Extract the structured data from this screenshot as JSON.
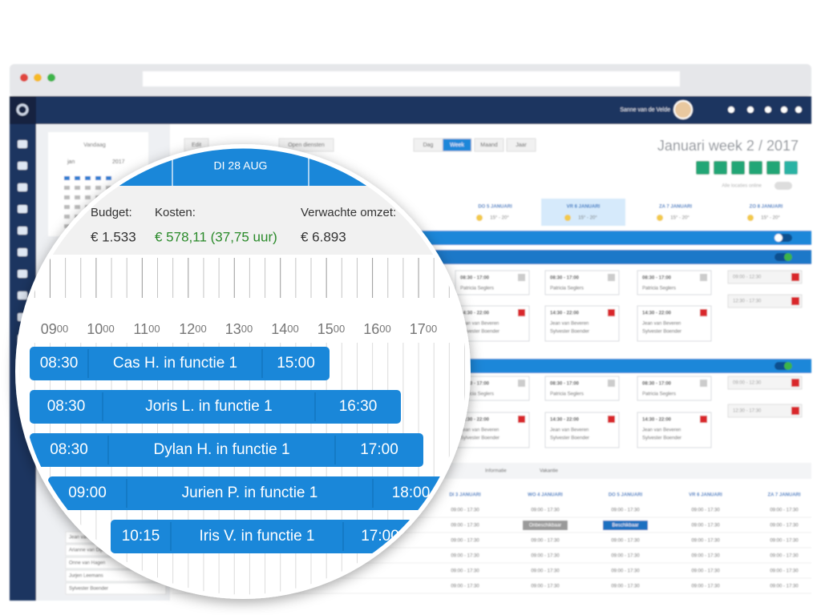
{
  "navbar": {
    "user": "Sanne van de Velde"
  },
  "calendar": {
    "today": "Vandaag",
    "month": "jan",
    "year": "2017"
  },
  "toolbar": {
    "buttons": [
      "Edit",
      "Open diensten"
    ],
    "views": [
      "Dag",
      "Week",
      "Maand",
      "Jaar"
    ],
    "active_view": 1
  },
  "title": "Januari week 2 / 2017",
  "location_toggle": "Alle locaties online",
  "days": [
    {
      "label": "DO 5 JANUARI",
      "weather": "15° - 20°"
    },
    {
      "label": "VR 6 JANUARI",
      "weather": "15° - 20°"
    },
    {
      "label": "ZA 7 JANUARI",
      "weather": "15° - 20°"
    },
    {
      "label": "ZO 8 JANUARI",
      "weather": "15° - 20°"
    }
  ],
  "shift_cards": [
    {
      "time": "08:30 - 17:00",
      "names": [
        "Patricia Seglers"
      ]
    },
    {
      "time": "14:30 - 22:00",
      "names": [
        "Jean van Beveren",
        "Sylvester Boender"
      ]
    }
  ],
  "availability": [
    "09:00 - 12:30",
    "12:30 - 17:30"
  ],
  "tabs": [
    "Informatie",
    "Vakantie"
  ],
  "table": {
    "headers": [
      "DI 3 JANUARI",
      "WO 4 JANUARI",
      "DO 5 JANUARI",
      "VR 6 JANUARI",
      "ZA 7 JANUARI"
    ],
    "rows": [
      [
        "09:00 - 17:30",
        "09:00 - 17:30",
        "09:00 - 17:30",
        "09:00 - 17:30",
        "09:00 - 17:30"
      ],
      [
        "09:00 - 17:30",
        "Onbeschikbaar",
        "Beschikbaar",
        "09:00 - 17:30",
        "09:00 - 17:30"
      ],
      [
        "09:00 - 17:30",
        "09:00 - 17:30",
        "09:00 - 17:30",
        "09:00 - 17:30",
        "09:00 - 17:30"
      ],
      [
        "09:00 - 17:30",
        "09:00 - 17:30",
        "09:00 - 17:30",
        "09:00 - 17:30",
        "09:00 - 17:30"
      ],
      [
        "09:00 - 17:30",
        "09:00 - 17:30",
        "09:00 - 17:30",
        "09:00 - 17:30",
        "09:00 - 17:30"
      ],
      [
        "09:00 - 17:30",
        "09:00 - 17:30",
        "09:00 - 17:30",
        "09:00 - 17:30",
        "09:00 - 17:30"
      ]
    ]
  },
  "employees": [
    "Jean van Beveren",
    "Arianne van Dijk",
    "Onne van Hagen",
    "Jurjen Leemans",
    "Sylvester Boender"
  ],
  "zoom": {
    "date": "DI 28 AUG",
    "budget": {
      "label": "Budget:",
      "value": "€ 1.533"
    },
    "costs": {
      "label": "Kosten:",
      "value": "€ 578,11 (37,75 uur)"
    },
    "revenue": {
      "label": "Verwachte omzet:",
      "value": "€ 6.893"
    },
    "hours": [
      {
        "h": "09",
        "m": "00"
      },
      {
        "h": "10",
        "m": "00"
      },
      {
        "h": "11",
        "m": "00"
      },
      {
        "h": "12",
        "m": "00"
      },
      {
        "h": "13",
        "m": "00"
      },
      {
        "h": "14",
        "m": "00"
      },
      {
        "h": "15",
        "m": "00"
      },
      {
        "h": "16",
        "m": "00"
      },
      {
        "h": "17",
        "m": "00"
      }
    ],
    "shifts": [
      {
        "start": "08:30",
        "name": "Cas H. in functie 1",
        "end": "15:00"
      },
      {
        "start": "08:30",
        "name": "Joris L. in functie 1",
        "end": "16:30"
      },
      {
        "start": "08:30",
        "name": "Dylan H. in functie 1",
        "end": "17:00"
      },
      {
        "start": "09:00",
        "name": "Jurien P. in functie 1",
        "end": "18:00"
      },
      {
        "start": "10:15",
        "name": "Iris V. in functie 1",
        "end": "17:00"
      }
    ]
  }
}
